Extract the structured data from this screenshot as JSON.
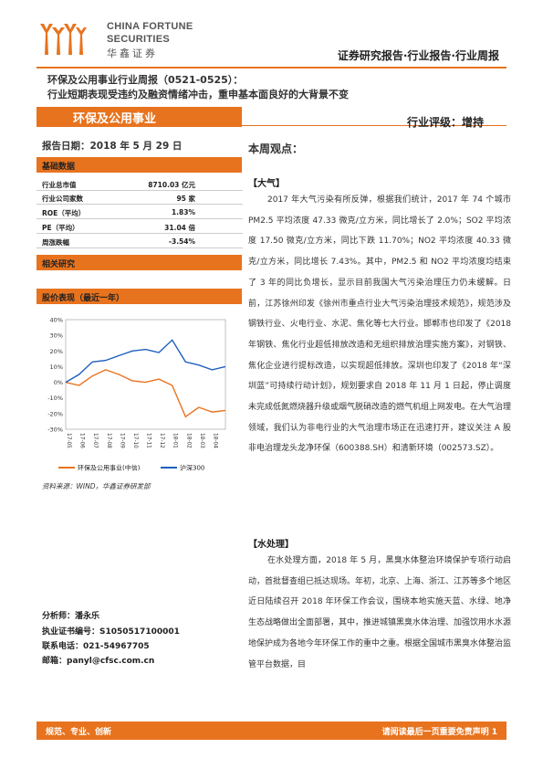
{
  "brand": {
    "en_line1": "CHINA FORTUNE",
    "en_line2": "SECURITIES",
    "cn": "华鑫证券"
  },
  "header": {
    "report_type": "证券研究报告·行业报告·行业周报"
  },
  "title": {
    "line1": "环保及公用事业行业周报（0521-0525）：",
    "line2": "行业短期表现受违约及融资情绪冲击，重申基本面良好的大背景不变"
  },
  "sector": {
    "name": "环保及公用事业",
    "rating": "行业评级：增持"
  },
  "report_date": "报告日期：2018 年 5 月 29 日",
  "view_title": "本周观点：",
  "basic_data": {
    "heading": "基础数据",
    "rows": [
      {
        "key": "行业总市值",
        "value": "8710.03 亿元"
      },
      {
        "key": "行业公司家数",
        "value": "95 家"
      },
      {
        "key": "ROE（平均）",
        "value": "1.83%"
      },
      {
        "key": "PE（平均）",
        "value": "31.04 倍"
      },
      {
        "key": "周涨跌幅",
        "value": "-3.54%"
      }
    ]
  },
  "related_research": {
    "heading": "相关研究"
  },
  "performance": {
    "heading": "股价表现（最近一年）"
  },
  "chart_data": {
    "type": "line",
    "x": [
      "17-05",
      "17-06",
      "17-07",
      "17-08",
      "17-09",
      "17-10",
      "17-11",
      "17-12",
      "18-01",
      "18-02",
      "18-03",
      "18-04",
      "18-05"
    ],
    "ylim": [
      -30,
      40
    ],
    "yticks": [
      "40%",
      "30%",
      "20%",
      "10%",
      "0%",
      "-10%",
      "-20%",
      "-30%"
    ],
    "xticks": [
      "17-05",
      "17-06",
      "17-07",
      "17-08",
      "17-09",
      "17-10",
      "17-11",
      "17-12",
      "18-01",
      "18-02",
      "18-03",
      "18-04"
    ],
    "series": [
      {
        "name": "环保及公用事业(中信)",
        "color": "#E8731E",
        "values": [
          0,
          -2,
          4,
          8,
          5,
          1,
          0,
          2,
          -2,
          -22,
          -16,
          -19,
          -18
        ]
      },
      {
        "name": "沪深300",
        "color": "#1F5FBF",
        "values": [
          0,
          5,
          13,
          14,
          17,
          20,
          21,
          19,
          27,
          13,
          11,
          8,
          10
        ]
      }
    ]
  },
  "source": "资料来源：WIND，华鑫证券研发部",
  "analyst": {
    "name": "分析师：潘永乐",
    "license": "执业证书编号：S1050517100001",
    "phone": "联系电话：021-54967705",
    "email": "邮箱：panyl@cfsc.com.cn"
  },
  "sections": [
    {
      "tag": "【大气】",
      "paragraph": "2017 年大气污染有所反弹，根据我们统计，2017 年 74 个城市 PM2.5 平均浓度 47.33 微克/立方米，同比增长了 2.0%；SO2 平均浓度 17.50 微克/立方米，同比下跌 11.70%；NO2 平均浓度 40.33 微克/立方米，同比增长 7.43%。其中，PM2.5 和 NO2 平均浓度均结束了 3 年的同比负增长，显示目前我国大气污染治理压力仍未缓解。日前，江苏徐州印发《徐州市重点行业大气污染治理技术规范》，规范涉及钢铁行业、火电行业、水泥、焦化等七大行业。邯郸市也印发了《2018 年钢铁、焦化行业超低排放改造和无组织排放治理实施方案》，对钢铁、焦化企业进行提标改造，以实现超低排放。深圳也印发了《2018 年“深圳蓝”可持续行动计划》，规划要求自 2018 年 11 月 1 日起，停止调度未完成低氮燃烧器升级或烟气脱硝改造的燃气机组上网发电。在大气治理领域，我们认为非电行业的大气治理市场正在迅速打开，建议关注 A 股非电治理龙头龙净环保（600388.SH）和清新环境（002573.SZ）。"
    },
    {
      "tag": "【水处理】",
      "paragraph": "在水处理方面，2018 年 5 月，黑臭水体整治环境保护专项行动启动，首批督查组已抵达现场。年初，北京、上海、浙江、江苏等多个地区近日陆续召开 2018 年环保工作会议，围绕本地实施天蓝、水绿、地净生态战略做出全面部署，其中，推进城镇黑臭水体治理、加强饮用水水源地保护成为各地今年环保工作的重中之重。根据全国城市黑臭水体整治监管平台数据，目"
    }
  ],
  "footer": {
    "left": "规范、专业、创新",
    "right": "请阅读最后一页重要免责声明 1"
  },
  "colors": {
    "accent": "#E8731E",
    "index_line": "#1F5FBF"
  }
}
